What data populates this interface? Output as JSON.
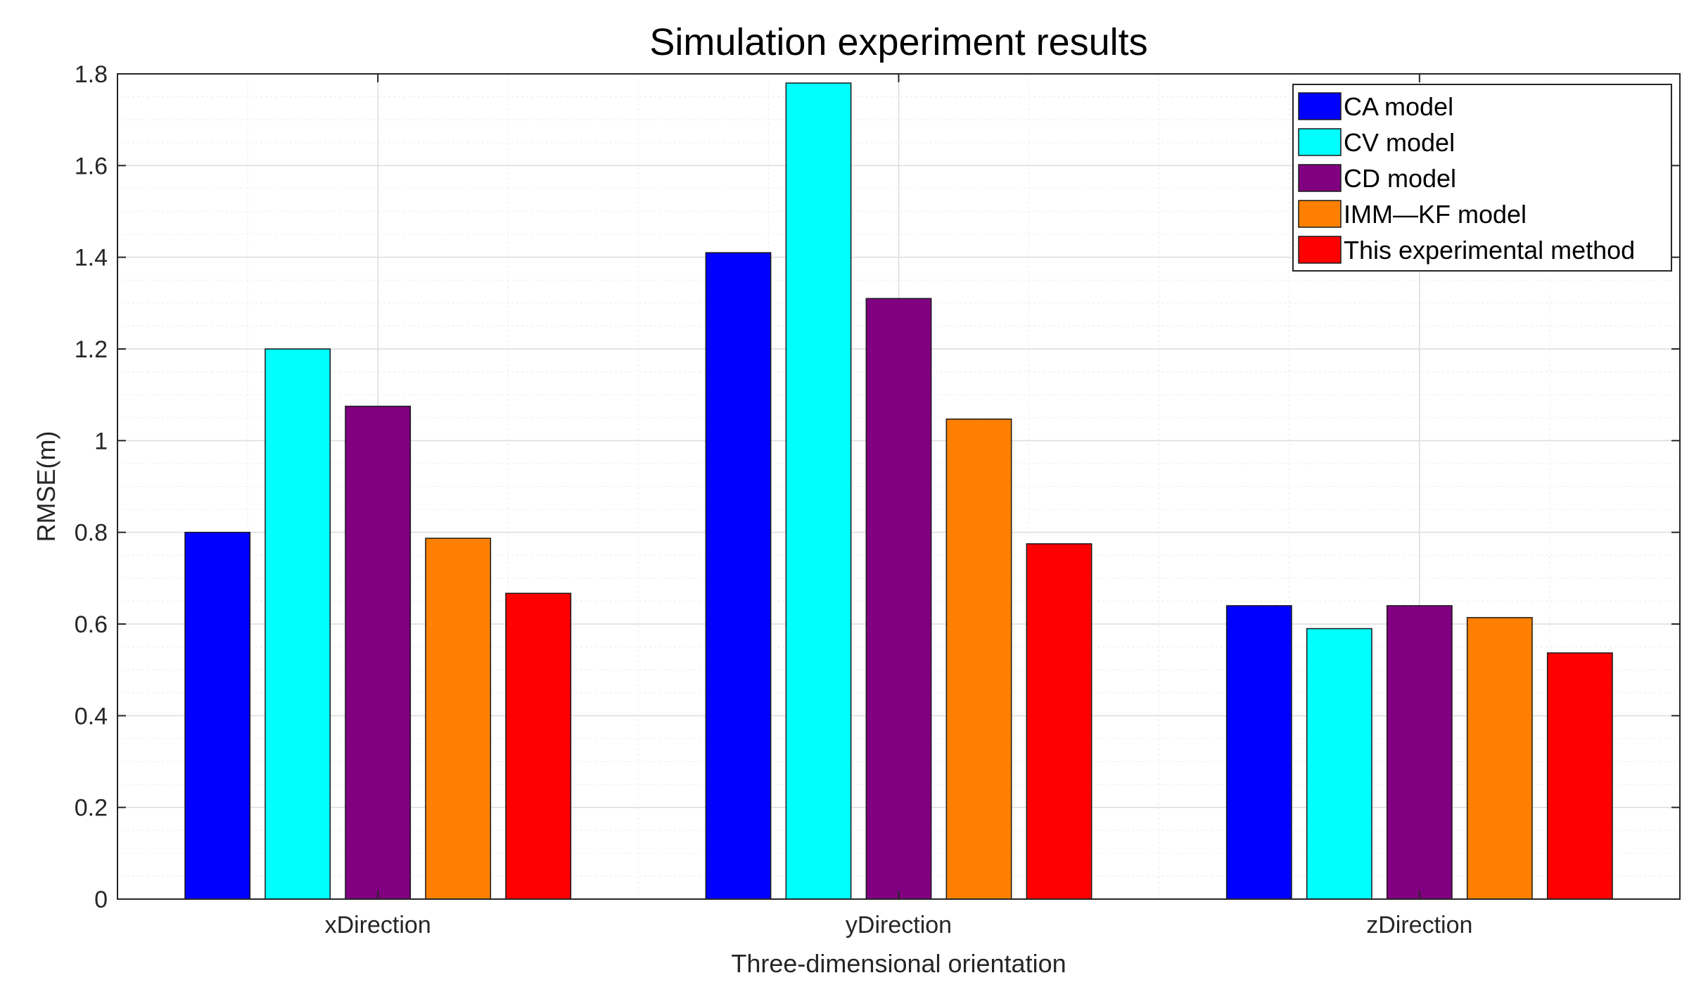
{
  "chart_data": {
    "type": "bar",
    "title": "Simulation experiment results",
    "xlabel": "Three-dimensional orientation",
    "ylabel": "RMSE(m)",
    "categories": [
      "xDirection",
      "yDirection",
      "zDirection"
    ],
    "ylim": [
      0,
      1.8
    ],
    "yticks": [
      "0",
      "0.2",
      "0.4",
      "0.6",
      "0.8",
      "1",
      "1.2",
      "1.4",
      "1.6",
      "1.8"
    ],
    "grid": true,
    "legend_position": "top-right",
    "series": [
      {
        "name": "CA model",
        "color": "#0000ff",
        "values": [
          0.8,
          1.41,
          0.64
        ]
      },
      {
        "name": "CV model",
        "color": "#00ffff",
        "values": [
          1.2,
          1.78,
          0.59
        ]
      },
      {
        "name": "CD model",
        "color": "#800080",
        "values": [
          1.075,
          1.31,
          0.64
        ]
      },
      {
        "name": "IMM—KF model",
        "color": "#ff8000",
        "values": [
          0.787,
          1.047,
          0.614
        ]
      },
      {
        "name": "This experimental method",
        "color": "#ff0000",
        "values": [
          0.667,
          0.775,
          0.537
        ]
      }
    ]
  }
}
